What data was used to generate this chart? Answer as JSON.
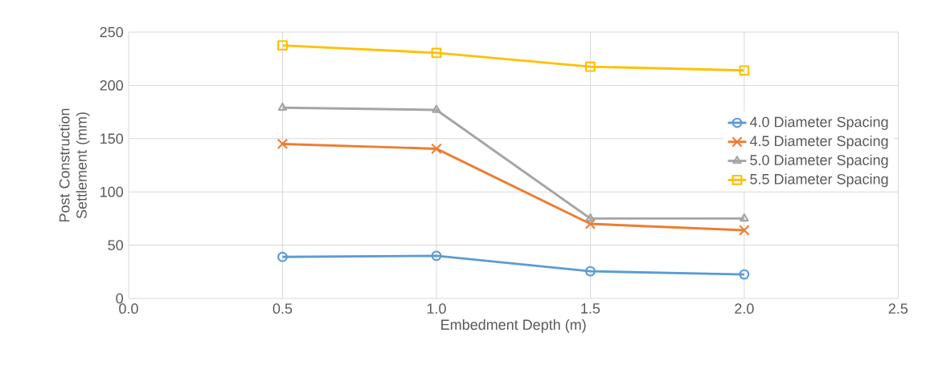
{
  "chart_data": {
    "type": "line",
    "xlabel": "Embedment Depth (m)",
    "ylabel": "Post Construction Settlement (mm)",
    "x": [
      0.5,
      1.0,
      1.5,
      2.0
    ],
    "series": [
      {
        "name": "4.0 Diameter Spacing",
        "color": "#5b9bd5",
        "marker": "circle",
        "values": [
          39,
          40,
          25.5,
          22.5
        ]
      },
      {
        "name": "4.5 Diameter Spacing",
        "color": "#ed7d31",
        "marker": "cross",
        "values": [
          145,
          140.5,
          70,
          64
        ]
      },
      {
        "name": "5.0 Diameter Spacing",
        "color": "#a5a5a5",
        "marker": "triangle",
        "values": [
          179,
          177,
          75,
          75
        ]
      },
      {
        "name": "5.5 Diameter Spacing",
        "color": "#ffc000",
        "marker": "square",
        "values": [
          237.5,
          230.5,
          217.5,
          214
        ]
      }
    ],
    "xlim": [
      0,
      2.5
    ],
    "xticks": [
      {
        "value": 0,
        "label": "0.0"
      },
      {
        "value": 0.5,
        "label": "0.5"
      },
      {
        "value": 1.0,
        "label": "1.0"
      },
      {
        "value": 1.5,
        "label": "1.5"
      },
      {
        "value": 2.0,
        "label": "2.0"
      },
      {
        "value": 2.5,
        "label": "2.5"
      }
    ],
    "ylim": [
      0,
      250
    ],
    "yticks": [
      0,
      50,
      100,
      150,
      200,
      250
    ],
    "grid": true,
    "legend": "right",
    "line_style": "solid"
  }
}
